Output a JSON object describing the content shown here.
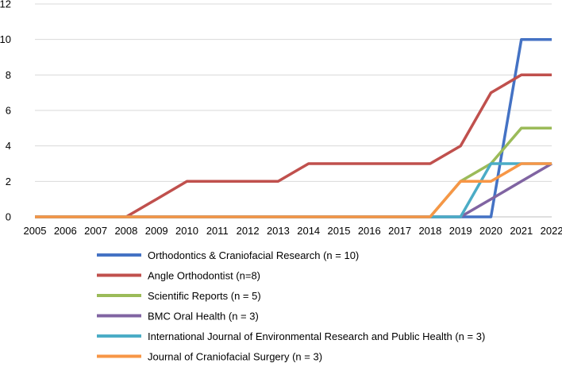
{
  "chart_data": {
    "type": "line",
    "title": "",
    "xlabel": "",
    "ylabel": "",
    "ylim": [
      0,
      12
    ],
    "yticks": [
      0,
      2,
      4,
      6,
      8,
      10,
      12
    ],
    "categories": [
      "2005",
      "2006",
      "2007",
      "2008",
      "2009",
      "2010",
      "2011",
      "2012",
      "2013",
      "2014",
      "2015",
      "2016",
      "2017",
      "2018",
      "2019",
      "2020",
      "2021",
      "2022"
    ],
    "grid": "horizontal",
    "legend_position": "bottom",
    "series": [
      {
        "name": "Orthodontics & Craniofacial Research (n = 10)",
        "color": "#4472C4",
        "values": [
          0,
          0,
          0,
          0,
          0,
          0,
          0,
          0,
          0,
          0,
          0,
          0,
          0,
          0,
          0,
          0,
          10,
          10
        ]
      },
      {
        "name": "Angle Orthodontist (n=8)",
        "color": "#C0504D",
        "values": [
          0,
          0,
          0,
          0,
          1,
          2,
          2,
          2,
          2,
          3,
          3,
          3,
          3,
          3,
          4,
          7,
          8,
          8
        ]
      },
      {
        "name": "Scientific Reports (n = 5)",
        "color": "#9BBB59",
        "values": [
          0,
          0,
          0,
          0,
          0,
          0,
          0,
          0,
          0,
          0,
          0,
          0,
          0,
          0,
          2,
          3,
          5,
          5
        ]
      },
      {
        "name": "BMC Oral Health (n = 3)",
        "color": "#8064A2",
        "values": [
          0,
          0,
          0,
          0,
          0,
          0,
          0,
          0,
          0,
          0,
          0,
          0,
          0,
          0,
          0,
          1,
          2,
          3
        ]
      },
      {
        "name": "International Journal of Environmental Research and Public Health (n = 3)",
        "color": "#4BACC6",
        "values": [
          0,
          0,
          0,
          0,
          0,
          0,
          0,
          0,
          0,
          0,
          0,
          0,
          0,
          0,
          0,
          3,
          3,
          3
        ]
      },
      {
        "name": "Journal of Craniofacial Surgery (n = 3)",
        "color": "#F79646",
        "values": [
          0,
          0,
          0,
          0,
          0,
          0,
          0,
          0,
          0,
          0,
          0,
          0,
          0,
          0,
          2,
          2,
          3,
          3
        ]
      }
    ]
  }
}
